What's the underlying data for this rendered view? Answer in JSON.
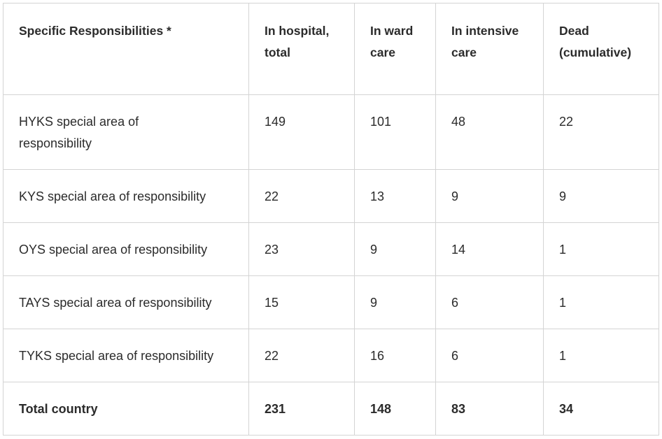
{
  "table": {
    "header": [
      "Specific Responsibilities *",
      "In hospital, total",
      "In ward care",
      "In intensive care",
      "Dead (cumulative)"
    ],
    "rows": [
      [
        "HYKS special area of responsibility",
        149,
        101,
        48,
        22
      ],
      [
        "KYS special area of responsibility",
        22,
        13,
        9,
        9
      ],
      [
        "OYS special area of responsibility",
        23,
        9,
        14,
        1
      ],
      [
        "TAYS special area of responsibility",
        15,
        9,
        6,
        1
      ],
      [
        "TYKS special area of responsibility",
        22,
        16,
        6,
        1
      ],
      [
        "Total country",
        231,
        148,
        83,
        34
      ]
    ]
  }
}
